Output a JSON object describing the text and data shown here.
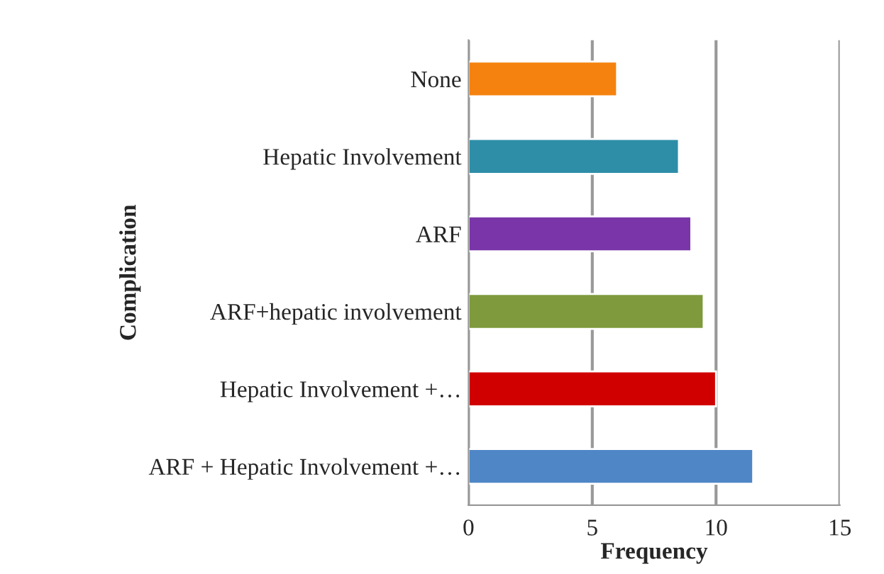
{
  "chart_data": {
    "type": "bar",
    "orientation": "horizontal",
    "xlabel": "Frequency",
    "ylabel": "Complication",
    "categories": [
      "None",
      "Hepatic Involvement",
      "ARF",
      "ARF+hepatic involvement",
      "Hepatic Involvement +…",
      "ARF + Hepatic Involvement +…"
    ],
    "values": [
      6,
      8.5,
      9,
      9.5,
      10,
      11.5
    ],
    "colors": [
      "#f5820f",
      "#2e8ea8",
      "#7a35a8",
      "#7e9a3c",
      "#d00000",
      "#4f86c6"
    ],
    "xlim": [
      0,
      15
    ],
    "xticks": [
      0,
      5,
      10,
      15
    ],
    "grid": "x",
    "legend": false
  }
}
